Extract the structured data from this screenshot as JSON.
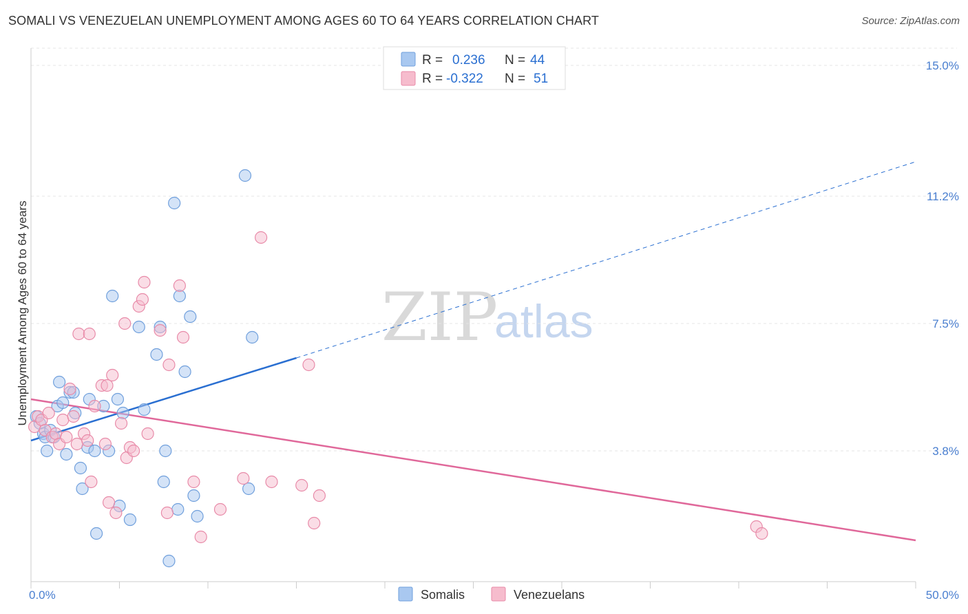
{
  "title": "SOMALI VS VENEZUELAN UNEMPLOYMENT AMONG AGES 60 TO 64 YEARS CORRELATION CHART",
  "source": "Source: ZipAtlas.com",
  "watermark": {
    "zip": "ZIP",
    "atlas": "atlas"
  },
  "colors": {
    "somali_fill": "#a9c8f0",
    "somali_stroke": "#6f9fdc",
    "somali_line": "#2a6fd1",
    "venezuelan_fill": "#f6bccd",
    "venezuelan_stroke": "#e88aa8",
    "venezuelan_line": "#e0689a",
    "tick": "#4a7fd0"
  },
  "legend": {
    "rows": [
      {
        "r_label": "R =",
        "r_value": "0.236",
        "n_label": "N =",
        "n_value": "44"
      },
      {
        "r_label": "R =",
        "r_value": "-0.322",
        "n_label": "N =",
        "n_value": "51"
      }
    ]
  },
  "bottom_legend": [
    "Somalis",
    "Venezuelans"
  ],
  "chart_data": {
    "type": "scatter",
    "title": "SOMALI VS VENEZUELAN UNEMPLOYMENT AMONG AGES 60 TO 64 YEARS CORRELATION CHART",
    "xlabel": "",
    "ylabel": "Unemployment Among Ages 60 to 64 years",
    "xlim": [
      0,
      50
    ],
    "ylim": [
      0,
      15.5
    ],
    "x_tick_labels": [
      "0.0%",
      "50.0%"
    ],
    "y_tick_values": [
      3.8,
      7.5,
      11.2,
      15.0
    ],
    "y_tick_labels": [
      "3.8%",
      "7.5%",
      "11.2%",
      "15.0%"
    ],
    "grid": true,
    "legend_position": "top-center",
    "series": [
      {
        "name": "Somalis",
        "points": [
          [
            0.3,
            4.8
          ],
          [
            0.5,
            4.6
          ],
          [
            0.7,
            4.3
          ],
          [
            0.8,
            4.2
          ],
          [
            0.9,
            3.8
          ],
          [
            1.1,
            4.4
          ],
          [
            1.3,
            4.2
          ],
          [
            1.5,
            5.1
          ],
          [
            1.6,
            5.8
          ],
          [
            1.8,
            5.2
          ],
          [
            2.0,
            3.7
          ],
          [
            2.2,
            5.5
          ],
          [
            2.4,
            5.5
          ],
          [
            2.5,
            4.9
          ],
          [
            2.8,
            3.3
          ],
          [
            2.9,
            2.7
          ],
          [
            3.2,
            3.9
          ],
          [
            3.3,
            5.3
          ],
          [
            3.6,
            3.8
          ],
          [
            3.7,
            1.4
          ],
          [
            4.1,
            5.1
          ],
          [
            4.4,
            3.8
          ],
          [
            4.6,
            8.3
          ],
          [
            4.9,
            5.3
          ],
          [
            5.0,
            2.2
          ],
          [
            5.2,
            4.9
          ],
          [
            5.6,
            1.8
          ],
          [
            6.1,
            7.4
          ],
          [
            6.4,
            5.0
          ],
          [
            7.1,
            6.6
          ],
          [
            7.3,
            7.4
          ],
          [
            7.5,
            2.9
          ],
          [
            7.6,
            3.8
          ],
          [
            7.8,
            0.6
          ],
          [
            8.1,
            11.0
          ],
          [
            8.3,
            2.1
          ],
          [
            8.4,
            8.3
          ],
          [
            8.7,
            6.1
          ],
          [
            9.0,
            7.7
          ],
          [
            9.2,
            2.5
          ],
          [
            9.4,
            1.9
          ],
          [
            12.1,
            11.8
          ],
          [
            12.3,
            2.7
          ],
          [
            12.5,
            7.1
          ]
        ],
        "trend": {
          "x": [
            0,
            15
          ],
          "y": [
            4.1,
            6.5
          ],
          "dashed_extension": {
            "x": [
              15,
              50
            ],
            "y": [
              6.5,
              12.2
            ]
          }
        }
      },
      {
        "name": "Venezuelans",
        "points": [
          [
            0.2,
            4.5
          ],
          [
            0.4,
            4.8
          ],
          [
            0.6,
            4.7
          ],
          [
            0.8,
            4.4
          ],
          [
            1.0,
            4.9
          ],
          [
            1.2,
            4.2
          ],
          [
            1.4,
            4.3
          ],
          [
            1.6,
            4.0
          ],
          [
            1.8,
            4.7
          ],
          [
            2.0,
            4.2
          ],
          [
            2.2,
            5.6
          ],
          [
            2.4,
            4.8
          ],
          [
            2.6,
            4.0
          ],
          [
            2.7,
            7.2
          ],
          [
            3.0,
            4.3
          ],
          [
            3.2,
            4.1
          ],
          [
            3.3,
            7.2
          ],
          [
            3.4,
            2.9
          ],
          [
            3.6,
            5.1
          ],
          [
            4.0,
            5.7
          ],
          [
            4.2,
            4.0
          ],
          [
            4.3,
            5.7
          ],
          [
            4.4,
            2.3
          ],
          [
            4.6,
            6.0
          ],
          [
            4.8,
            2.0
          ],
          [
            5.1,
            4.6
          ],
          [
            5.3,
            7.5
          ],
          [
            5.4,
            3.6
          ],
          [
            5.6,
            3.9
          ],
          [
            5.8,
            3.8
          ],
          [
            6.1,
            8.0
          ],
          [
            6.3,
            8.2
          ],
          [
            6.4,
            8.7
          ],
          [
            6.6,
            4.3
          ],
          [
            7.3,
            7.3
          ],
          [
            7.7,
            2.0
          ],
          [
            7.8,
            6.3
          ],
          [
            8.4,
            8.6
          ],
          [
            8.6,
            7.1
          ],
          [
            9.2,
            2.9
          ],
          [
            9.6,
            1.3
          ],
          [
            10.7,
            2.1
          ],
          [
            12.0,
            3.0
          ],
          [
            13.0,
            10.0
          ],
          [
            13.6,
            2.9
          ],
          [
            15.3,
            2.8
          ],
          [
            15.7,
            6.3
          ],
          [
            16.0,
            1.7
          ],
          [
            16.3,
            2.5
          ],
          [
            41.0,
            1.6
          ],
          [
            41.3,
            1.4
          ]
        ],
        "trend": {
          "x": [
            0,
            50
          ],
          "y": [
            5.3,
            1.2
          ]
        }
      }
    ]
  }
}
